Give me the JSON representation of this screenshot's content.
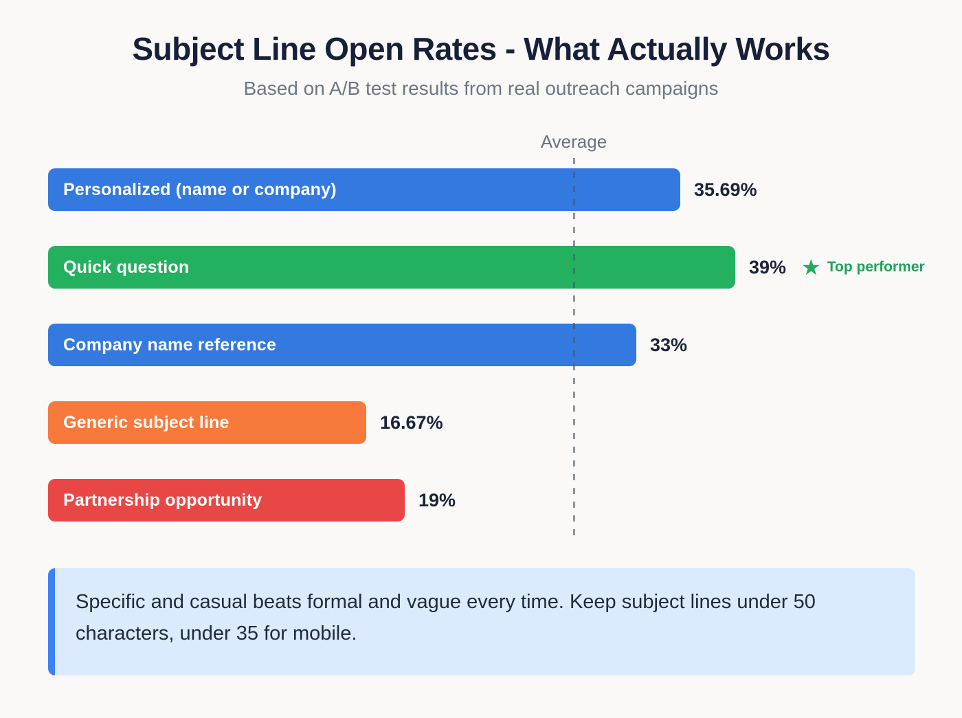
{
  "header": {
    "title": "Subject Line Open Rates - What Actually Works",
    "subtitle": "Based on A/B test results from real outreach campaigns"
  },
  "chart_data": {
    "type": "bar",
    "orientation": "horizontal",
    "categories": [
      "Personalized (name or company)",
      "Quick question",
      "Company name reference",
      "Generic subject line",
      "Partnership opportunity"
    ],
    "values": [
      35.69,
      39,
      33,
      16.67,
      19
    ],
    "value_labels": [
      "35.69%",
      "39%",
      "33%",
      "16.67%",
      "19%"
    ],
    "bar_colors": [
      "#3379e0",
      "#23b160",
      "#3379e0",
      "#f8793c",
      "#e94745"
    ],
    "xlim": [
      0,
      39
    ],
    "grid": false,
    "legend": false,
    "average_line": {
      "label": "Average",
      "value_estimate": 29.2,
      "style": "dashed",
      "color": "#6b7280"
    },
    "annotations": [
      {
        "bar_index": 1,
        "icon": "star-icon",
        "icon_glyph": "★",
        "text": "Top performer",
        "text_color": "#1da35a",
        "icon_color": "#1fab5e"
      }
    ]
  },
  "insight": {
    "text": "Specific and casual beats formal and vague every time. Keep subject lines under 50 characters, under 35 for mobile.",
    "accent_color": "#3c82f5",
    "background": "#dbeafc"
  }
}
